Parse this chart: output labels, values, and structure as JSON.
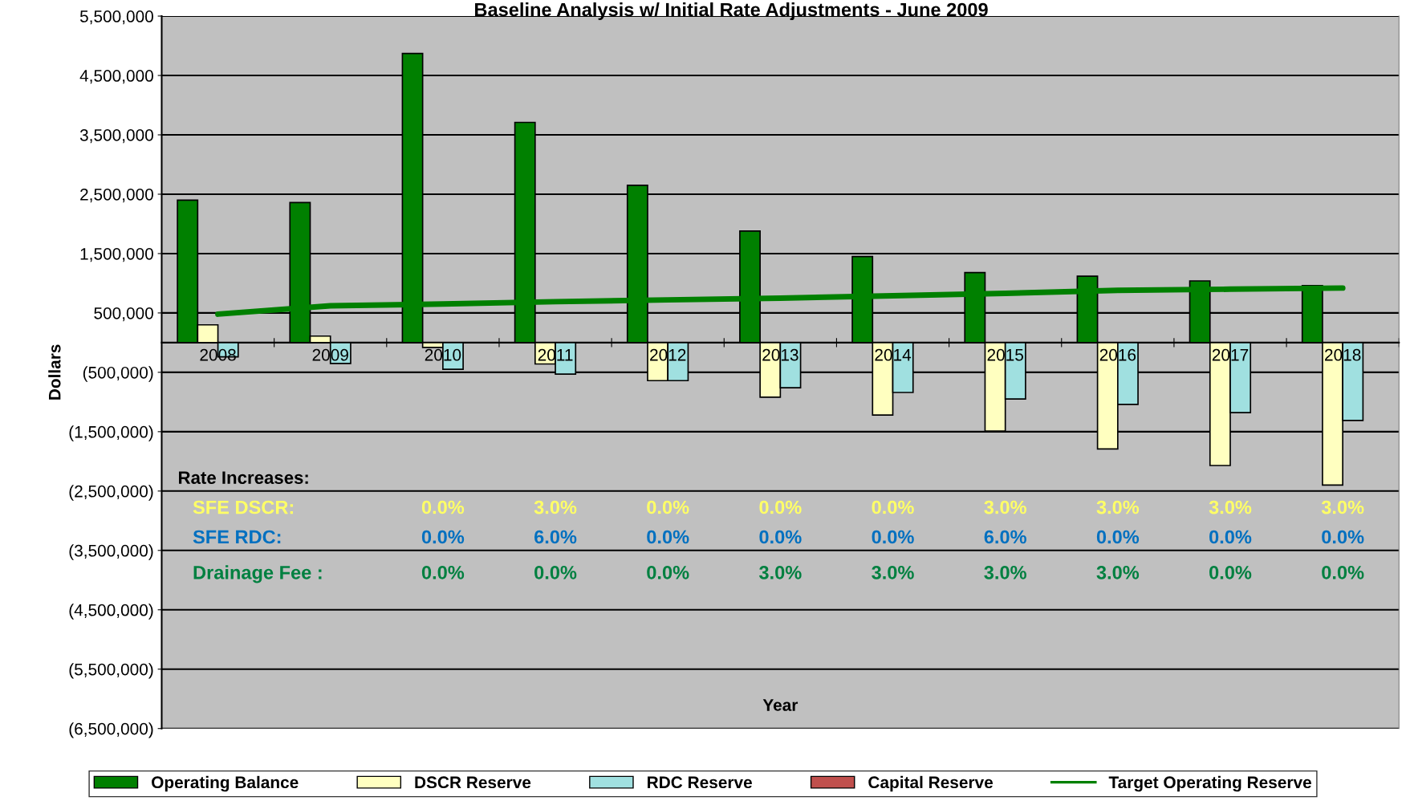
{
  "chart_data": {
    "type": "bar",
    "title": "Baseline Analysis w/ Initial Rate Adjustments - June 2009",
    "xlabel": "Year",
    "ylabel": "Dollars",
    "categories": [
      "2008",
      "2009",
      "2010",
      "2011",
      "2012",
      "2013",
      "2014",
      "2015",
      "2016",
      "2017",
      "2018"
    ],
    "series": [
      {
        "name": "Operating Balance",
        "color": "#008000",
        "values": [
          2400000,
          2360000,
          4870000,
          3710000,
          2650000,
          1880000,
          1450000,
          1180000,
          1120000,
          1040000,
          960000
        ]
      },
      {
        "name": "DSCR Reserve",
        "color": "#ffffc0",
        "values": [
          300000,
          110000,
          -80000,
          -360000,
          -640000,
          -920000,
          -1220000,
          -1490000,
          -1790000,
          -2070000,
          -2400000
        ]
      },
      {
        "name": "RDC Reserve",
        "color": "#a0e0e0",
        "values": [
          -240000,
          -350000,
          -450000,
          -530000,
          -640000,
          -760000,
          -840000,
          -950000,
          -1040000,
          -1180000,
          -1310000
        ]
      },
      {
        "name": "Capital Reserve",
        "color": "#c0504d",
        "values": [
          null,
          null,
          null,
          null,
          null,
          null,
          null,
          null,
          null,
          null,
          null
        ]
      },
      {
        "name": "Target Operating Reserve",
        "type": "line",
        "color": "#008000",
        "values": [
          480000,
          620000,
          650000,
          690000,
          720000,
          750000,
          790000,
          830000,
          880000,
          900000,
          920000
        ]
      }
    ],
    "ylim": [
      -6500000,
      5500000
    ],
    "yticks": [
      {
        "value": -6500000,
        "label": "(6,500,000)"
      },
      {
        "value": -5500000,
        "label": "(5,500,000)"
      },
      {
        "value": -4500000,
        "label": "(4,500,000)"
      },
      {
        "value": -3500000,
        "label": "(3,500,000)"
      },
      {
        "value": -2500000,
        "label": "(2,500,000)"
      },
      {
        "value": -1500000,
        "label": "(1,500,000)"
      },
      {
        "value": -500000,
        "label": "(500,000)"
      },
      {
        "value": 500000,
        "label": "500,000"
      },
      {
        "value": 1500000,
        "label": "1,500,000"
      },
      {
        "value": 2500000,
        "label": "2,500,000"
      },
      {
        "value": 3500000,
        "label": "3,500,000"
      },
      {
        "value": 4500000,
        "label": "4,500,000"
      },
      {
        "value": 5500000,
        "label": "5,500,000"
      }
    ],
    "grid": "y",
    "legend": "bottom",
    "annotations": [
      "Rate Increases:",
      "SFE DSCR:",
      "0.0%",
      "3.0%",
      "0.0%",
      "0.0%",
      "0.0%",
      "3.0%",
      "3.0%",
      "3.0%",
      "3.0%",
      "SFE RDC:",
      "0.0%",
      "6.0%",
      "0.0%",
      "0.0%",
      "0.0%",
      "6.0%",
      "0.0%",
      "0.0%",
      "0.0%",
      "Drainage Fee :",
      "0.0%",
      "0.0%",
      "0.0%",
      "3.0%",
      "3.0%",
      "3.0%",
      "3.0%",
      "0.0%",
      "0.0%"
    ]
  }
}
